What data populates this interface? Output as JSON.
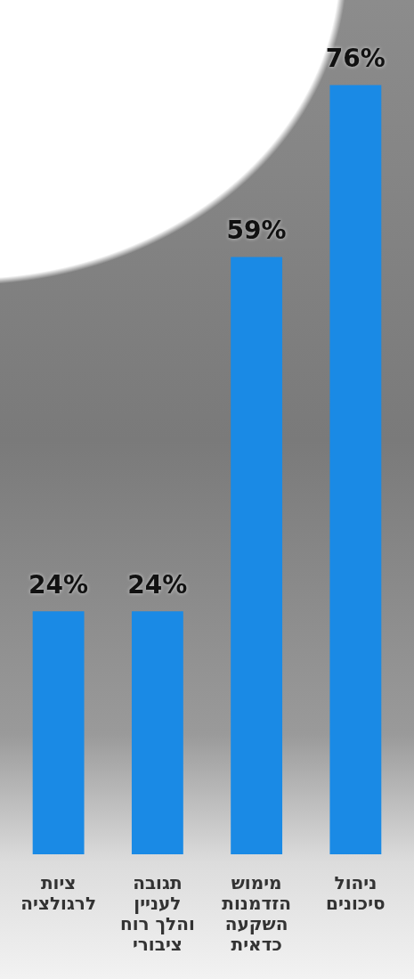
{
  "chart_data": {
    "type": "bar",
    "categories": [
      "ציות לרגולציה",
      "תגובה לעניין והלך רוח ציבורי",
      "מימוש הזדמנות השקעה כדאית",
      "ניהול סיכונים"
    ],
    "values": [
      24,
      24,
      59,
      76
    ],
    "value_labels": [
      "24%",
      "24%",
      "59%",
      "76%"
    ],
    "color": "#1a8ae5",
    "ylim": [
      0,
      80
    ],
    "grid": false,
    "data_labels": true,
    "tick_labels": "x"
  }
}
